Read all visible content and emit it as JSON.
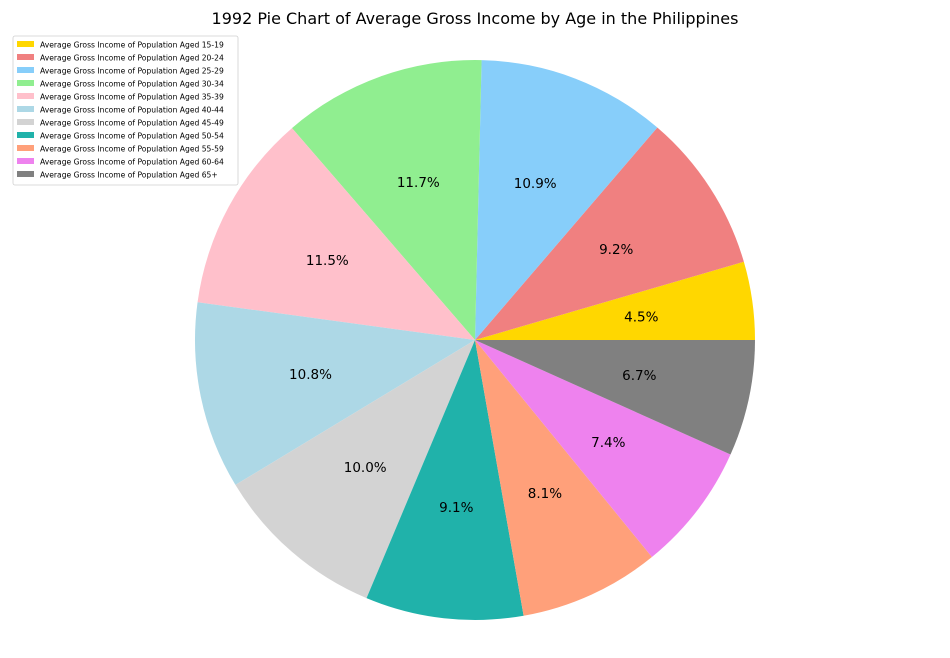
{
  "chart_data": {
    "type": "pie",
    "title": "1992 Pie Chart of Average Gross Income by Age in the Philippines",
    "legend_position": "top-left",
    "start_angle_deg": 0,
    "direction": "counterclockwise",
    "slices": [
      {
        "label": "Average Gross Income of Population Aged 15-19",
        "value": 4.5,
        "pct_label": "4.5%",
        "color": "#FFD700"
      },
      {
        "label": "Average Gross Income of Population Aged 20-24",
        "value": 9.2,
        "pct_label": "9.2%",
        "color": "#F08080"
      },
      {
        "label": "Average Gross Income of Population Aged 25-29",
        "value": 10.9,
        "pct_label": "10.9%",
        "color": "#87CEFA"
      },
      {
        "label": "Average Gross Income of Population Aged 30-34",
        "value": 11.7,
        "pct_label": "11.7%",
        "color": "#90EE90"
      },
      {
        "label": "Average Gross Income of Population Aged 35-39",
        "value": 11.5,
        "pct_label": "11.5%",
        "color": "#FFC0CB"
      },
      {
        "label": "Average Gross Income of Population Aged 40-44",
        "value": 10.8,
        "pct_label": "10.8%",
        "color": "#ADD8E6"
      },
      {
        "label": "Average Gross Income of Population Aged 45-49",
        "value": 10.0,
        "pct_label": "10.0%",
        "color": "#D3D3D3"
      },
      {
        "label": "Average Gross Income of Population Aged 50-54",
        "value": 9.1,
        "pct_label": "9.1%",
        "color": "#20B2AA"
      },
      {
        "label": "Average Gross Income of Population Aged 55-59",
        "value": 8.1,
        "pct_label": "8.1%",
        "color": "#FFA07A"
      },
      {
        "label": "Average Gross Income of Population Aged 60-64",
        "value": 7.4,
        "pct_label": "7.4%",
        "color": "#EE82EE"
      },
      {
        "label": "Average Gross Income of Population Aged 65+",
        "value": 6.7,
        "pct_label": "6.7%",
        "color": "#808080"
      }
    ]
  }
}
